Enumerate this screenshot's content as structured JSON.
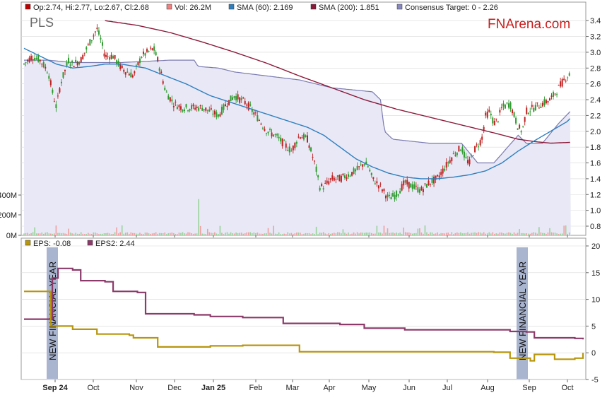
{
  "chart_data": [
    {
      "type": "line",
      "ticker": "PLS",
      "watermark": "FNArena.com",
      "legend": [
        {
          "key": "ohlc",
          "label": "Op:2.74, Hi:2.77, Lo:2.67, Cl:2.68",
          "color": "#c00000"
        },
        {
          "key": "vol",
          "label": "Vol: 26.2M",
          "color": "#f08080"
        },
        {
          "key": "sma60",
          "label": "SMA (60): 2.169",
          "color": "#2f7fbf"
        },
        {
          "key": "sma200",
          "label": "SMA (200): 1.851",
          "color": "#8b1a3a"
        },
        {
          "key": "consensus",
          "label": "Consensus Target: 0 - 2.26",
          "color": "#6a6aa8"
        }
      ],
      "ylim": [
        0.8,
        3.5
      ],
      "yticks": [
        "0.8",
        "1.0",
        "1.2",
        "1.4",
        "1.6",
        "1.8",
        "2.0",
        "2.2",
        "2.4",
        "2.6",
        "2.8",
        "3.0",
        "3.2",
        "3.4"
      ],
      "volume_ticks": [
        "0M",
        "200M",
        "400M"
      ],
      "price_path": [
        [
          0,
          2.85
        ],
        [
          10,
          2.95
        ],
        [
          20,
          2.9
        ],
        [
          30,
          2.75
        ],
        [
          35,
          2.5
        ],
        [
          40,
          2.3
        ],
        [
          45,
          2.6
        ],
        [
          55,
          2.9
        ],
        [
          60,
          2.85
        ],
        [
          70,
          2.9
        ],
        [
          80,
          3.1
        ],
        [
          90,
          3.3
        ],
        [
          95,
          3.15
        ],
        [
          100,
          2.95
        ],
        [
          110,
          2.95
        ],
        [
          120,
          2.8
        ],
        [
          135,
          2.7
        ],
        [
          145,
          2.95
        ],
        [
          160,
          3.05
        ],
        [
          165,
          2.9
        ],
        [
          175,
          2.5
        ],
        [
          185,
          2.35
        ],
        [
          195,
          2.3
        ],
        [
          210,
          2.3
        ],
        [
          220,
          2.3
        ],
        [
          240,
          2.2
        ],
        [
          250,
          2.35
        ],
        [
          260,
          2.45
        ],
        [
          275,
          2.35
        ],
        [
          290,
          2.15
        ],
        [
          300,
          2.0
        ],
        [
          310,
          1.95
        ],
        [
          320,
          1.85
        ],
        [
          330,
          1.75
        ],
        [
          340,
          1.95
        ],
        [
          350,
          1.9
        ],
        [
          360,
          1.55
        ],
        [
          365,
          1.3
        ],
        [
          370,
          1.3
        ],
        [
          380,
          1.4
        ],
        [
          390,
          1.4
        ],
        [
          400,
          1.45
        ],
        [
          410,
          1.5
        ],
        [
          420,
          1.6
        ],
        [
          425,
          1.55
        ],
        [
          430,
          1.4
        ],
        [
          440,
          1.3
        ],
        [
          450,
          1.15
        ],
        [
          460,
          1.2
        ],
        [
          470,
          1.35
        ],
        [
          480,
          1.3
        ],
        [
          490,
          1.25
        ],
        [
          500,
          1.35
        ],
        [
          510,
          1.4
        ],
        [
          520,
          1.55
        ],
        [
          530,
          1.7
        ],
        [
          540,
          1.8
        ],
        [
          545,
          1.65
        ],
        [
          550,
          1.6
        ],
        [
          555,
          1.75
        ],
        [
          565,
          1.9
        ],
        [
          570,
          2.2
        ],
        [
          575,
          2.25
        ],
        [
          580,
          2.1
        ],
        [
          585,
          2.15
        ],
        [
          590,
          2.3
        ],
        [
          600,
          2.35
        ],
        [
          610,
          2.05
        ],
        [
          615,
          2.0
        ],
        [
          620,
          2.25
        ],
        [
          630,
          2.3
        ],
        [
          640,
          2.35
        ],
        [
          650,
          2.4
        ],
        [
          660,
          2.55
        ],
        [
          670,
          2.7
        ],
        [
          675,
          2.72
        ]
      ],
      "sma60_path": [
        [
          0,
          3.05
        ],
        [
          20,
          2.95
        ],
        [
          40,
          2.85
        ],
        [
          60,
          2.8
        ],
        [
          80,
          2.82
        ],
        [
          100,
          2.85
        ],
        [
          120,
          2.85
        ],
        [
          150,
          2.8
        ],
        [
          175,
          2.7
        ],
        [
          200,
          2.6
        ],
        [
          230,
          2.45
        ],
        [
          260,
          2.35
        ],
        [
          290,
          2.25
        ],
        [
          320,
          2.15
        ],
        [
          350,
          2.05
        ],
        [
          370,
          1.95
        ],
        [
          390,
          1.8
        ],
        [
          410,
          1.65
        ],
        [
          430,
          1.55
        ],
        [
          450,
          1.47
        ],
        [
          470,
          1.42
        ],
        [
          490,
          1.4
        ],
        [
          510,
          1.4
        ],
        [
          530,
          1.42
        ],
        [
          550,
          1.45
        ],
        [
          570,
          1.5
        ],
        [
          590,
          1.6
        ],
        [
          610,
          1.75
        ],
        [
          630,
          1.88
        ],
        [
          650,
          2.0
        ],
        [
          670,
          2.12
        ],
        [
          675,
          2.17
        ]
      ],
      "sma200_path": [
        [
          100,
          3.4
        ],
        [
          140,
          3.34
        ],
        [
          180,
          3.25
        ],
        [
          220,
          3.13
        ],
        [
          260,
          3.0
        ],
        [
          300,
          2.86
        ],
        [
          340,
          2.7
        ],
        [
          380,
          2.55
        ],
        [
          420,
          2.4
        ],
        [
          460,
          2.28
        ],
        [
          500,
          2.18
        ],
        [
          540,
          2.08
        ],
        [
          580,
          1.98
        ],
        [
          610,
          1.9
        ],
        [
          630,
          1.87
        ],
        [
          650,
          1.85
        ],
        [
          675,
          1.86
        ]
      ],
      "consensus_path": [
        [
          0,
          2.9
        ],
        [
          30,
          2.9
        ],
        [
          60,
          2.87
        ],
        [
          120,
          2.87
        ],
        [
          180,
          2.9
        ],
        [
          210,
          2.9
        ],
        [
          215,
          2.82
        ],
        [
          240,
          2.8
        ],
        [
          260,
          2.75
        ],
        [
          300,
          2.7
        ],
        [
          340,
          2.65
        ],
        [
          380,
          2.55
        ],
        [
          430,
          2.5
        ],
        [
          440,
          2.4
        ],
        [
          445,
          2.0
        ],
        [
          455,
          1.9
        ],
        [
          500,
          1.85
        ],
        [
          540,
          1.85
        ],
        [
          560,
          1.6
        ],
        [
          580,
          1.6
        ],
        [
          610,
          1.95
        ],
        [
          620,
          1.85
        ],
        [
          640,
          1.85
        ],
        [
          660,
          2.1
        ],
        [
          675,
          2.26
        ]
      ],
      "volume_spike_index": 216
    },
    {
      "type": "line",
      "legend": [
        {
          "key": "eps",
          "label": "EPS: -0.08",
          "color": "#b8960c"
        },
        {
          "key": "eps2",
          "label": "EPS2: 2.44",
          "color": "#8b3a6a"
        }
      ],
      "ylim": [
        -5,
        20
      ],
      "yticks": [
        "-5",
        "0",
        "5",
        "10",
        "15",
        "20"
      ],
      "annotations": [
        "NEW FINANCIAL YEAR",
        "NEW FINANCIAL YEAR"
      ],
      "eps": [
        [
          0,
          11.5
        ],
        [
          30,
          11.5
        ],
        [
          33,
          5
        ],
        [
          50,
          5
        ],
        [
          60,
          4.4
        ],
        [
          80,
          4.4
        ],
        [
          90,
          3.5
        ],
        [
          130,
          3.3
        ],
        [
          135,
          2.8
        ],
        [
          160,
          2.8
        ],
        [
          165,
          1.1
        ],
        [
          230,
          1.3
        ],
        [
          270,
          1.4
        ],
        [
          330,
          1.4
        ],
        [
          340,
          0.2
        ],
        [
          470,
          0.2
        ],
        [
          580,
          0.1
        ],
        [
          600,
          -1
        ],
        [
          625,
          -1.5
        ],
        [
          630,
          -0.3
        ],
        [
          650,
          -0.3
        ],
        [
          655,
          -1.2
        ],
        [
          680,
          -1
        ],
        [
          690,
          0
        ]
      ],
      "eps2": [
        [
          0,
          6.3
        ],
        [
          30,
          6.3
        ],
        [
          35,
          14
        ],
        [
          42,
          15.8
        ],
        [
          60,
          15.5
        ],
        [
          70,
          13.5
        ],
        [
          100,
          13.3
        ],
        [
          110,
          11.5
        ],
        [
          140,
          11.3
        ],
        [
          150,
          7.3
        ],
        [
          210,
          7.1
        ],
        [
          230,
          6.8
        ],
        [
          270,
          6.6
        ],
        [
          320,
          5.5
        ],
        [
          390,
          5.3
        ],
        [
          420,
          4.6
        ],
        [
          470,
          4.3
        ],
        [
          600,
          4.0
        ],
        [
          620,
          3.9
        ],
        [
          630,
          2.8
        ],
        [
          680,
          2.7
        ],
        [
          690,
          2.5
        ]
      ]
    }
  ],
  "x_axis": {
    "labels": [
      "Sep 24",
      "Oct",
      "Nov",
      "Dec",
      "Jan 25",
      "Feb",
      "Mar",
      "Apr",
      "May",
      "Jun",
      "Jul",
      "Aug",
      "Sep",
      "Oct"
    ]
  }
}
